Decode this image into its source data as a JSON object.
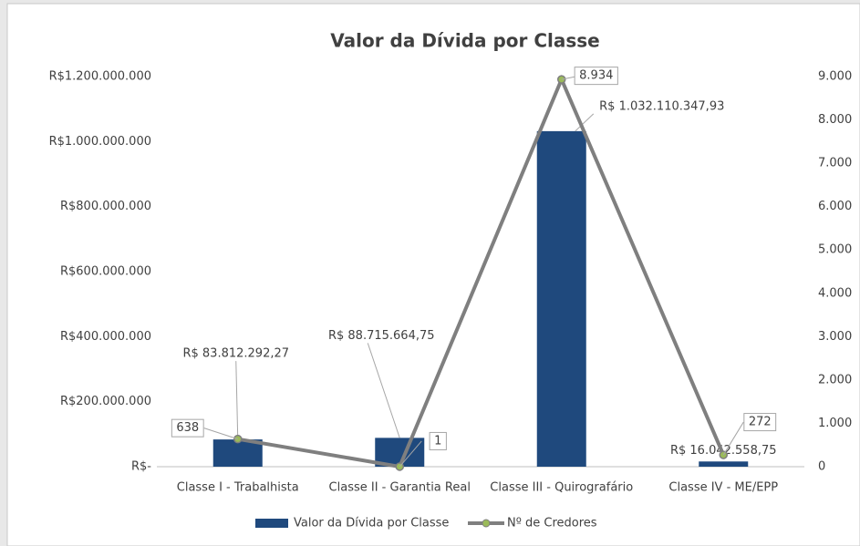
{
  "chart_data": {
    "type": "bar",
    "title": "Valor da Dívida por Classe",
    "categories": [
      "Classe I - Trabalhista",
      "Classe II - Garantia Real",
      "Classe III - Quirografário",
      "Classe IV - ME/EPP"
    ],
    "series": [
      {
        "name": "Valor da Dívida por Classe",
        "type": "bar",
        "color": "#1f497d",
        "values": [
          83812292.27,
          88715664.75,
          1032110347.93,
          16042558.75
        ],
        "value_labels": [
          "R$ 83.812.292,27",
          "R$ 88.715.664,75",
          "R$ 1.032.110.347,93",
          "R$ 16.042.558,75"
        ]
      },
      {
        "name": "Nº de Credores",
        "type": "line",
        "axis": "y2",
        "color": "#7f7f7f",
        "marker_color": "#9bbb59",
        "values": [
          638,
          1,
          8934,
          272
        ],
        "value_labels": [
          "638",
          "1",
          "8.934",
          "272"
        ]
      }
    ],
    "ylim": [
      0,
      1200000000
    ],
    "yticks": [
      {
        "value": 0,
        "label": "R$-"
      },
      {
        "value": 200000000,
        "label": "R$200.000.000"
      },
      {
        "value": 400000000,
        "label": "R$400.000.000"
      },
      {
        "value": 600000000,
        "label": "R$600.000.000"
      },
      {
        "value": 800000000,
        "label": "R$800.000.000"
      },
      {
        "value": 1000000000,
        "label": "R$1.000.000.000"
      },
      {
        "value": 1200000000,
        "label": "R$1.200.000.000"
      }
    ],
    "y2lim": [
      0,
      9000
    ],
    "y2ticks": [
      0,
      {
        "value": 1000,
        "label": "1.000"
      },
      {
        "value": 2000,
        "label": "2.000"
      },
      {
        "value": 3000,
        "label": "3.000"
      },
      {
        "value": 4000,
        "label": "4.000"
      },
      {
        "value": 5000,
        "label": "5.000"
      },
      {
        "value": 6000,
        "label": "6.000"
      },
      {
        "value": 7000,
        "label": "7.000"
      },
      {
        "value": 8000,
        "label": "8.000"
      },
      {
        "value": 9000,
        "label": "9.000"
      }
    ],
    "grid": false,
    "legend": "bottom"
  }
}
